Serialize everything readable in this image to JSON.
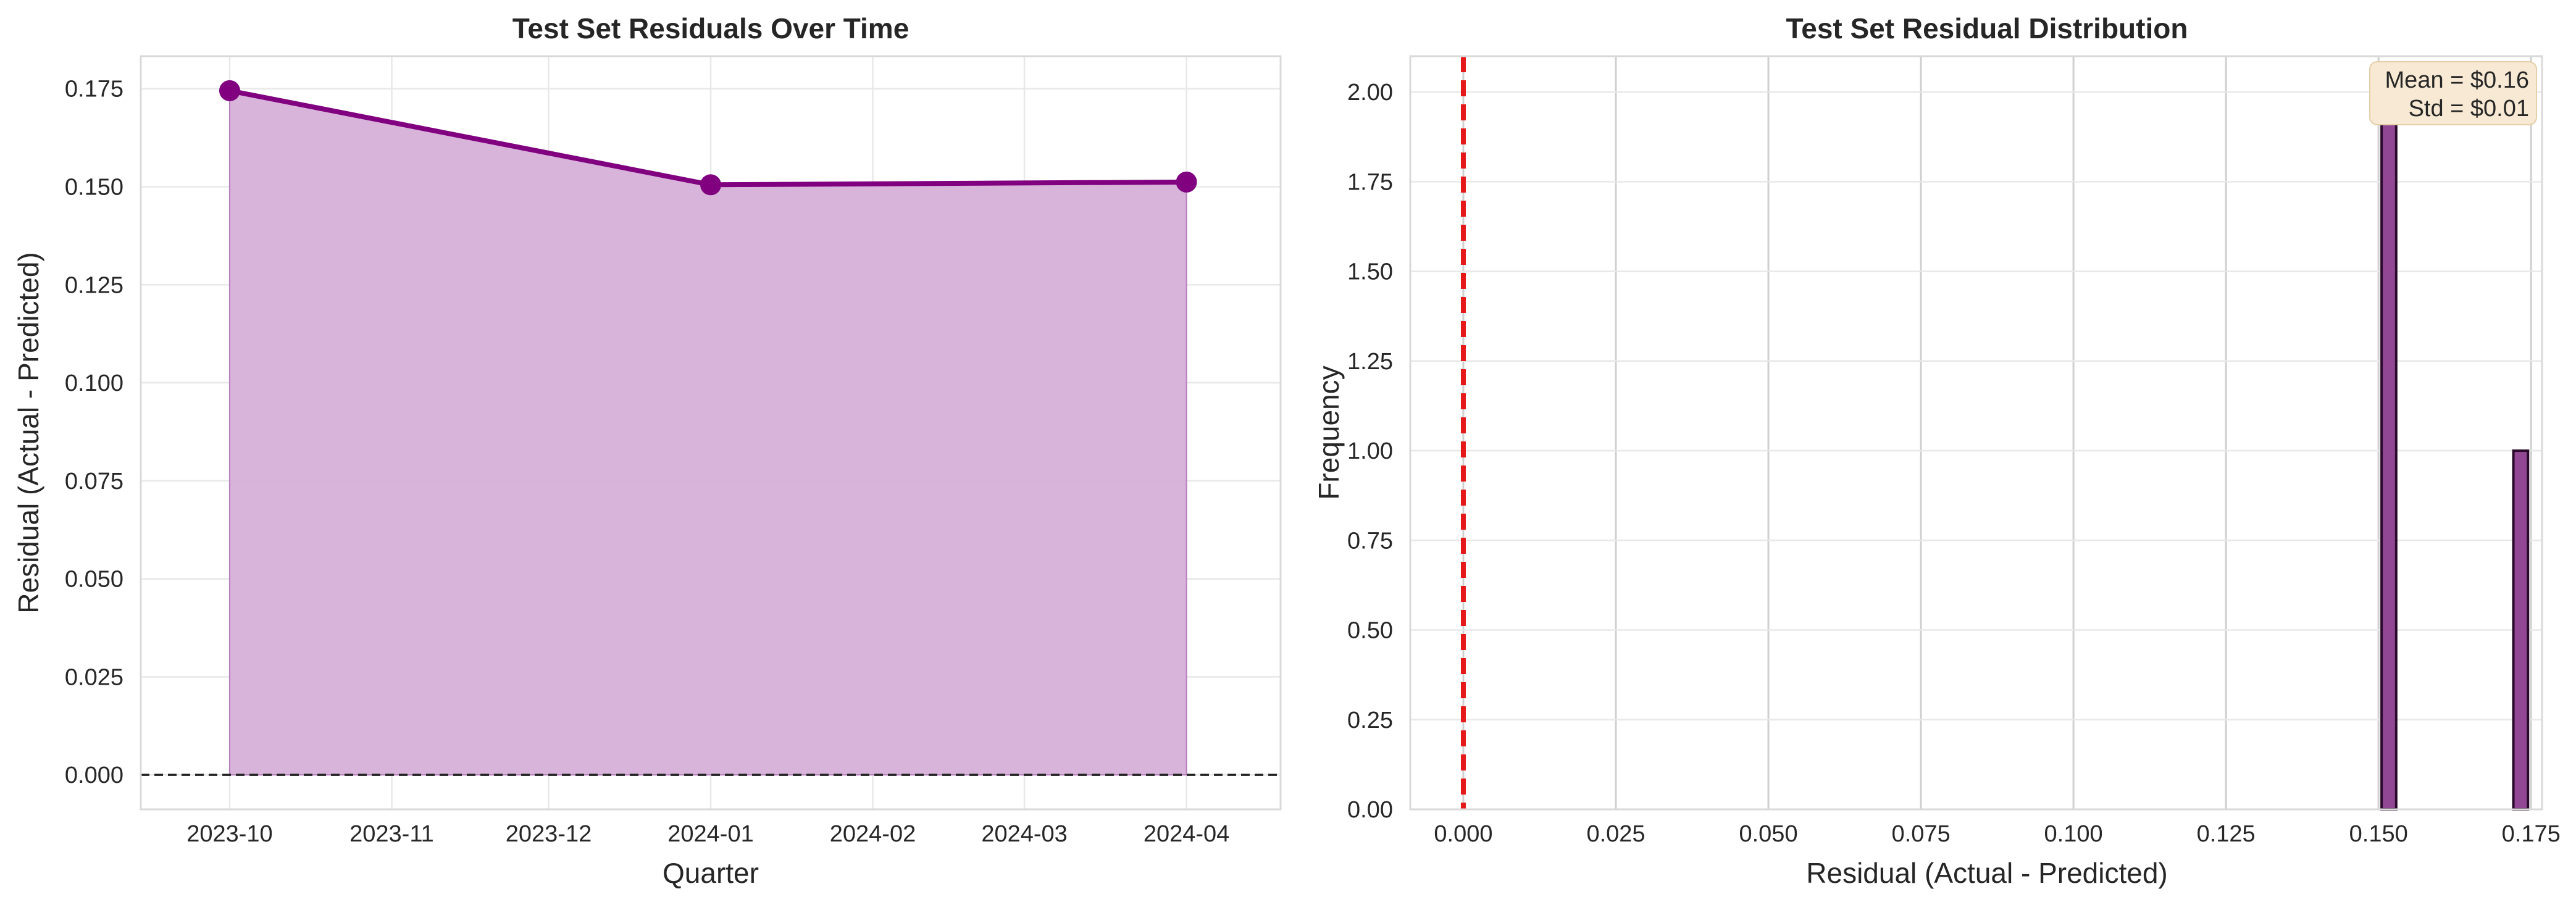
{
  "colors": {
    "line": "#800080",
    "fill": "#d6b0d8",
    "bar": "#8c3d8f",
    "bar_edge": "#2a0a2a",
    "zero_line_hist": "#e6191a",
    "zero_line_ts": "#222222",
    "stats_box": "#f7e9d3",
    "stats_box_edge": "#e6cfa8"
  },
  "chart_data": [
    {
      "type": "area",
      "title": "Test Set Residuals Over Time",
      "xlabel": "Quarter",
      "ylabel": "Residual (Actual - Predicted)",
      "x_ticks": [
        "2023-10",
        "2023-11",
        "2023-12",
        "2024-01",
        "2024-02",
        "2024-03",
        "2024-04"
      ],
      "x": [
        "2023-10-01",
        "2024-01-01",
        "2024-04-01"
      ],
      "y": [
        0.1745,
        0.1505,
        0.1512
      ],
      "y_ticks": [
        "0.000",
        "0.025",
        "0.050",
        "0.075",
        "0.100",
        "0.125",
        "0.150",
        "0.175"
      ],
      "xlim": [
        "2023-09-14",
        "2024-04-19"
      ],
      "ylim": [
        -0.0088,
        0.1833
      ],
      "reference_line_y": 0,
      "grid": true
    },
    {
      "type": "bar",
      "title": "Test Set Residual Distribution",
      "xlabel": "Residual (Actual - Predicted)",
      "ylabel": "Frequency",
      "bins": [
        {
          "start": 0.1505,
          "end": 0.1529,
          "count": 2
        },
        {
          "start": 0.1529,
          "end": 0.1721,
          "count": 0
        },
        {
          "start": 0.1721,
          "end": 0.1745,
          "count": 1
        }
      ],
      "x_ticks": [
        "0.000",
        "0.025",
        "0.050",
        "0.075",
        "0.100",
        "0.125",
        "0.150",
        "0.175"
      ],
      "y_ticks": [
        "0.00",
        "0.25",
        "0.50",
        "0.75",
        "1.00",
        "1.25",
        "1.50",
        "1.75",
        "2.00"
      ],
      "xlim": [
        -0.0087,
        0.1768
      ],
      "ylim": [
        0,
        2.1
      ],
      "reference_line_x": 0,
      "annotation": {
        "mean": "Mean = $0.16",
        "std": "Std = $0.01"
      },
      "grid": true
    }
  ]
}
